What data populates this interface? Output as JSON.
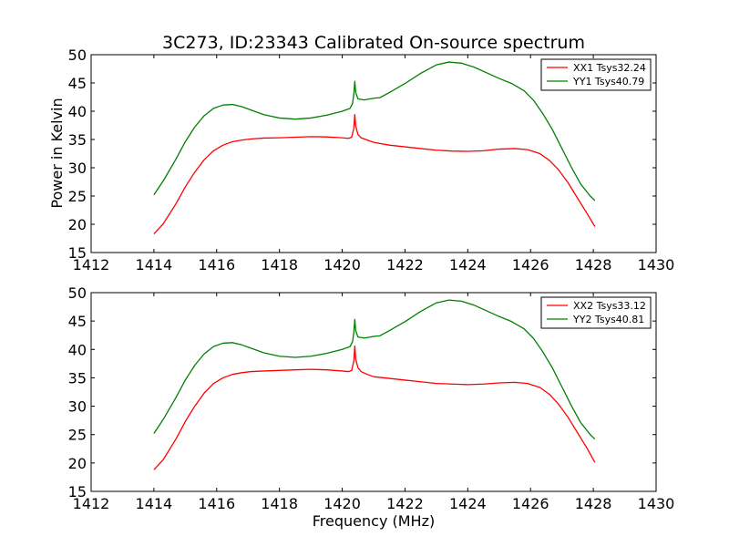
{
  "figure": {
    "title": "3C273, ID:23343 Calibrated On-source spectrum",
    "ylabel": "Power in Kelvin",
    "xlabel": "Frequency (MHz)"
  },
  "chart_data": [
    {
      "type": "line",
      "xlim": [
        1412,
        1430
      ],
      "ylim": [
        15,
        50
      ],
      "xticks": [
        "1412",
        "1414",
        "1416",
        "1418",
        "1420",
        "1422",
        "1424",
        "1426",
        "1428",
        "1430"
      ],
      "yticks": [
        "15",
        "20",
        "25",
        "30",
        "35",
        "40",
        "45",
        "50"
      ],
      "xlabel": "",
      "ylabel": "Power in Kelvin",
      "legend_position": "top-right",
      "grid": false,
      "series": [
        {
          "name": "XX1 Tsys32.24",
          "color": "#ff0000",
          "points": [
            [
              1414.0,
              18.3
            ],
            [
              1414.3,
              20.1
            ],
            [
              1414.7,
              23.6
            ],
            [
              1415.0,
              26.6
            ],
            [
              1415.3,
              29.2
            ],
            [
              1415.6,
              31.4
            ],
            [
              1415.9,
              33.0
            ],
            [
              1416.2,
              34.0
            ],
            [
              1416.5,
              34.6
            ],
            [
              1416.8,
              34.9
            ],
            [
              1417.1,
              35.1
            ],
            [
              1417.5,
              35.25
            ],
            [
              1418.0,
              35.3
            ],
            [
              1418.5,
              35.4
            ],
            [
              1419.0,
              35.5
            ],
            [
              1419.5,
              35.45
            ],
            [
              1420.0,
              35.3
            ],
            [
              1420.2,
              35.2
            ],
            [
              1420.3,
              35.4
            ],
            [
              1420.37,
              37.0
            ],
            [
              1420.4,
              39.4
            ],
            [
              1420.43,
              37.4
            ],
            [
              1420.5,
              35.9
            ],
            [
              1420.6,
              35.3
            ],
            [
              1420.8,
              34.9
            ],
            [
              1421.0,
              34.5
            ],
            [
              1421.5,
              34.0
            ],
            [
              1422.0,
              33.7
            ],
            [
              1422.5,
              33.4
            ],
            [
              1423.0,
              33.1
            ],
            [
              1423.5,
              32.95
            ],
            [
              1424.0,
              32.9
            ],
            [
              1424.5,
              33.0
            ],
            [
              1425.0,
              33.3
            ],
            [
              1425.5,
              33.4
            ],
            [
              1425.9,
              33.2
            ],
            [
              1426.3,
              32.5
            ],
            [
              1426.6,
              31.3
            ],
            [
              1426.9,
              29.6
            ],
            [
              1427.2,
              27.3
            ],
            [
              1427.5,
              24.6
            ],
            [
              1427.8,
              21.9
            ],
            [
              1428.05,
              19.6
            ]
          ]
        },
        {
          "name": "YY1 Tsys40.79",
          "color": "#008000",
          "points": [
            [
              1414.0,
              25.2
            ],
            [
              1414.3,
              27.7
            ],
            [
              1414.7,
              31.5
            ],
            [
              1415.0,
              34.6
            ],
            [
              1415.3,
              37.2
            ],
            [
              1415.6,
              39.2
            ],
            [
              1415.9,
              40.5
            ],
            [
              1416.2,
              41.1
            ],
            [
              1416.5,
              41.2
            ],
            [
              1416.8,
              40.8
            ],
            [
              1417.1,
              40.2
            ],
            [
              1417.5,
              39.4
            ],
            [
              1418.0,
              38.8
            ],
            [
              1418.5,
              38.6
            ],
            [
              1419.0,
              38.8
            ],
            [
              1419.5,
              39.3
            ],
            [
              1420.0,
              40.0
            ],
            [
              1420.25,
              40.5
            ],
            [
              1420.33,
              41.4
            ],
            [
              1420.37,
              43.0
            ],
            [
              1420.4,
              45.3
            ],
            [
              1420.43,
              43.3
            ],
            [
              1420.5,
              42.2
            ],
            [
              1420.7,
              42.0
            ],
            [
              1421.0,
              42.3
            ],
            [
              1421.2,
              42.4
            ],
            [
              1421.5,
              43.3
            ],
            [
              1422.0,
              44.9
            ],
            [
              1422.5,
              46.7
            ],
            [
              1423.0,
              48.2
            ],
            [
              1423.4,
              48.7
            ],
            [
              1423.8,
              48.5
            ],
            [
              1424.2,
              47.8
            ],
            [
              1424.6,
              46.8
            ],
            [
              1425.0,
              45.8
            ],
            [
              1425.4,
              44.9
            ],
            [
              1425.8,
              43.6
            ],
            [
              1426.1,
              41.9
            ],
            [
              1426.4,
              39.5
            ],
            [
              1426.7,
              36.7
            ],
            [
              1427.0,
              33.4
            ],
            [
              1427.3,
              30.1
            ],
            [
              1427.6,
              27.1
            ],
            [
              1427.9,
              25.0
            ],
            [
              1428.05,
              24.2
            ]
          ]
        }
      ]
    },
    {
      "type": "line",
      "xlim": [
        1412,
        1430
      ],
      "ylim": [
        15,
        50
      ],
      "xticks": [
        "1412",
        "1414",
        "1416",
        "1418",
        "1420",
        "1422",
        "1424",
        "1426",
        "1428",
        "1430"
      ],
      "yticks": [
        "15",
        "20",
        "25",
        "30",
        "35",
        "40",
        "45",
        "50"
      ],
      "xlabel": "Frequency (MHz)",
      "ylabel": "",
      "legend_position": "top-right",
      "grid": false,
      "series": [
        {
          "name": "XX2 Tsys33.12",
          "color": "#ff0000",
          "points": [
            [
              1414.0,
              18.8
            ],
            [
              1414.3,
              20.6
            ],
            [
              1414.7,
              24.2
            ],
            [
              1415.0,
              27.3
            ],
            [
              1415.3,
              30.0
            ],
            [
              1415.6,
              32.3
            ],
            [
              1415.9,
              34.0
            ],
            [
              1416.2,
              35.0
            ],
            [
              1416.5,
              35.6
            ],
            [
              1416.8,
              35.9
            ],
            [
              1417.1,
              36.1
            ],
            [
              1417.5,
              36.2
            ],
            [
              1418.0,
              36.3
            ],
            [
              1418.5,
              36.4
            ],
            [
              1419.0,
              36.5
            ],
            [
              1419.5,
              36.4
            ],
            [
              1420.0,
              36.2
            ],
            [
              1420.2,
              36.1
            ],
            [
              1420.3,
              36.3
            ],
            [
              1420.37,
              38.0
            ],
            [
              1420.4,
              40.6
            ],
            [
              1420.43,
              38.3
            ],
            [
              1420.5,
              36.8
            ],
            [
              1420.6,
              36.1
            ],
            [
              1420.8,
              35.6
            ],
            [
              1421.0,
              35.2
            ],
            [
              1421.5,
              34.9
            ],
            [
              1422.0,
              34.6
            ],
            [
              1422.5,
              34.3
            ],
            [
              1423.0,
              34.0
            ],
            [
              1423.5,
              33.9
            ],
            [
              1424.0,
              33.8
            ],
            [
              1424.5,
              33.9
            ],
            [
              1425.0,
              34.1
            ],
            [
              1425.5,
              34.2
            ],
            [
              1425.9,
              34.0
            ],
            [
              1426.3,
              33.3
            ],
            [
              1426.6,
              32.1
            ],
            [
              1426.9,
              30.3
            ],
            [
              1427.2,
              28.0
            ],
            [
              1427.5,
              25.3
            ],
            [
              1427.8,
              22.6
            ],
            [
              1428.05,
              20.1
            ]
          ]
        },
        {
          "name": "YY2 Tsys40.81",
          "color": "#008000",
          "points": [
            [
              1414.0,
              25.2
            ],
            [
              1414.3,
              27.7
            ],
            [
              1414.7,
              31.5
            ],
            [
              1415.0,
              34.6
            ],
            [
              1415.3,
              37.2
            ],
            [
              1415.6,
              39.2
            ],
            [
              1415.9,
              40.5
            ],
            [
              1416.2,
              41.1
            ],
            [
              1416.5,
              41.2
            ],
            [
              1416.8,
              40.8
            ],
            [
              1417.1,
              40.2
            ],
            [
              1417.5,
              39.4
            ],
            [
              1418.0,
              38.8
            ],
            [
              1418.5,
              38.6
            ],
            [
              1419.0,
              38.8
            ],
            [
              1419.5,
              39.3
            ],
            [
              1420.0,
              40.0
            ],
            [
              1420.25,
              40.5
            ],
            [
              1420.33,
              41.4
            ],
            [
              1420.37,
              43.0
            ],
            [
              1420.4,
              45.3
            ],
            [
              1420.43,
              43.3
            ],
            [
              1420.5,
              42.2
            ],
            [
              1420.7,
              42.0
            ],
            [
              1421.0,
              42.3
            ],
            [
              1421.2,
              42.4
            ],
            [
              1421.5,
              43.3
            ],
            [
              1422.0,
              44.9
            ],
            [
              1422.5,
              46.7
            ],
            [
              1423.0,
              48.2
            ],
            [
              1423.4,
              48.7
            ],
            [
              1423.8,
              48.5
            ],
            [
              1424.2,
              47.8
            ],
            [
              1424.6,
              46.8
            ],
            [
              1425.0,
              45.8
            ],
            [
              1425.4,
              44.9
            ],
            [
              1425.8,
              43.6
            ],
            [
              1426.1,
              41.9
            ],
            [
              1426.4,
              39.5
            ],
            [
              1426.7,
              36.7
            ],
            [
              1427.0,
              33.4
            ],
            [
              1427.3,
              30.1
            ],
            [
              1427.6,
              27.1
            ],
            [
              1427.9,
              25.0
            ],
            [
              1428.05,
              24.2
            ]
          ]
        }
      ]
    }
  ]
}
